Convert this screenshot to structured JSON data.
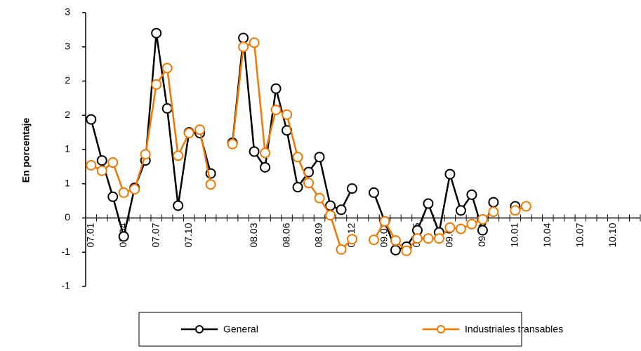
{
  "chart_data": {
    "type": "line",
    "y_label": "En porcentaje",
    "categories": [
      "07.01",
      null,
      null,
      "07.04",
      null,
      null,
      "07.07",
      null,
      null,
      "07.10",
      null,
      null,
      null,
      null,
      null,
      "08.03",
      null,
      null,
      "08.06",
      null,
      null,
      "08.09",
      null,
      null,
      "08.12",
      null,
      null,
      "09.02",
      null,
      null,
      "09.05",
      null,
      null,
      "09.08",
      null,
      null,
      "09.11",
      null,
      null,
      "10.01",
      null,
      null,
      "10.04",
      null,
      null,
      "10.07",
      null,
      null,
      "10.10",
      null,
      null
    ],
    "series": [
      {
        "name": "General",
        "color": "#000000",
        "values": [
          1.44,
          0.84,
          0.31,
          -0.27,
          0.44,
          0.84,
          2.7,
          1.6,
          0.18,
          1.25,
          1.24,
          0.65,
          null,
          1.1,
          2.63,
          0.97,
          0.74,
          1.89,
          1.28,
          0.45,
          0.67,
          0.89,
          0.18,
          0.12,
          0.43,
          null,
          0.37,
          -0.05,
          -0.47,
          -0.42,
          -0.18,
          0.21,
          -0.21,
          0.64,
          0.11,
          0.34,
          -0.18,
          0.23,
          null,
          0.17,
          null,
          null,
          null,
          null,
          null,
          null,
          null,
          null,
          null,
          null,
          null
        ]
      },
      {
        "name": "Industriales transables",
        "color": "#f07800",
        "values": [
          0.77,
          0.69,
          0.81,
          0.37,
          0.42,
          0.93,
          1.95,
          2.19,
          0.91,
          1.24,
          1.29,
          0.49,
          null,
          1.08,
          2.5,
          2.56,
          0.95,
          1.58,
          1.51,
          0.89,
          0.51,
          0.29,
          0.04,
          -0.46,
          -0.31,
          null,
          -0.32,
          -0.05,
          -0.33,
          -0.48,
          -0.3,
          -0.3,
          -0.3,
          -0.14,
          -0.16,
          -0.09,
          -0.02,
          0.09,
          null,
          0.11,
          0.17,
          null,
          null,
          null,
          null,
          null,
          null,
          null,
          null,
          null,
          null
        ]
      }
    ],
    "ylim": [
      -1,
      3
    ],
    "yticks": [
      {
        "value": 3,
        "label": "3"
      },
      {
        "value": 2.5,
        "label": "3"
      },
      {
        "value": 2,
        "label": "2"
      },
      {
        "value": 1.5,
        "label": "2"
      },
      {
        "value": 1,
        "label": "1"
      },
      {
        "value": 0.5,
        "label": "1"
      },
      0,
      {
        "value": -0.5,
        "label": "-1"
      },
      -1
    ],
    "grid": false,
    "legend": "bottom"
  }
}
